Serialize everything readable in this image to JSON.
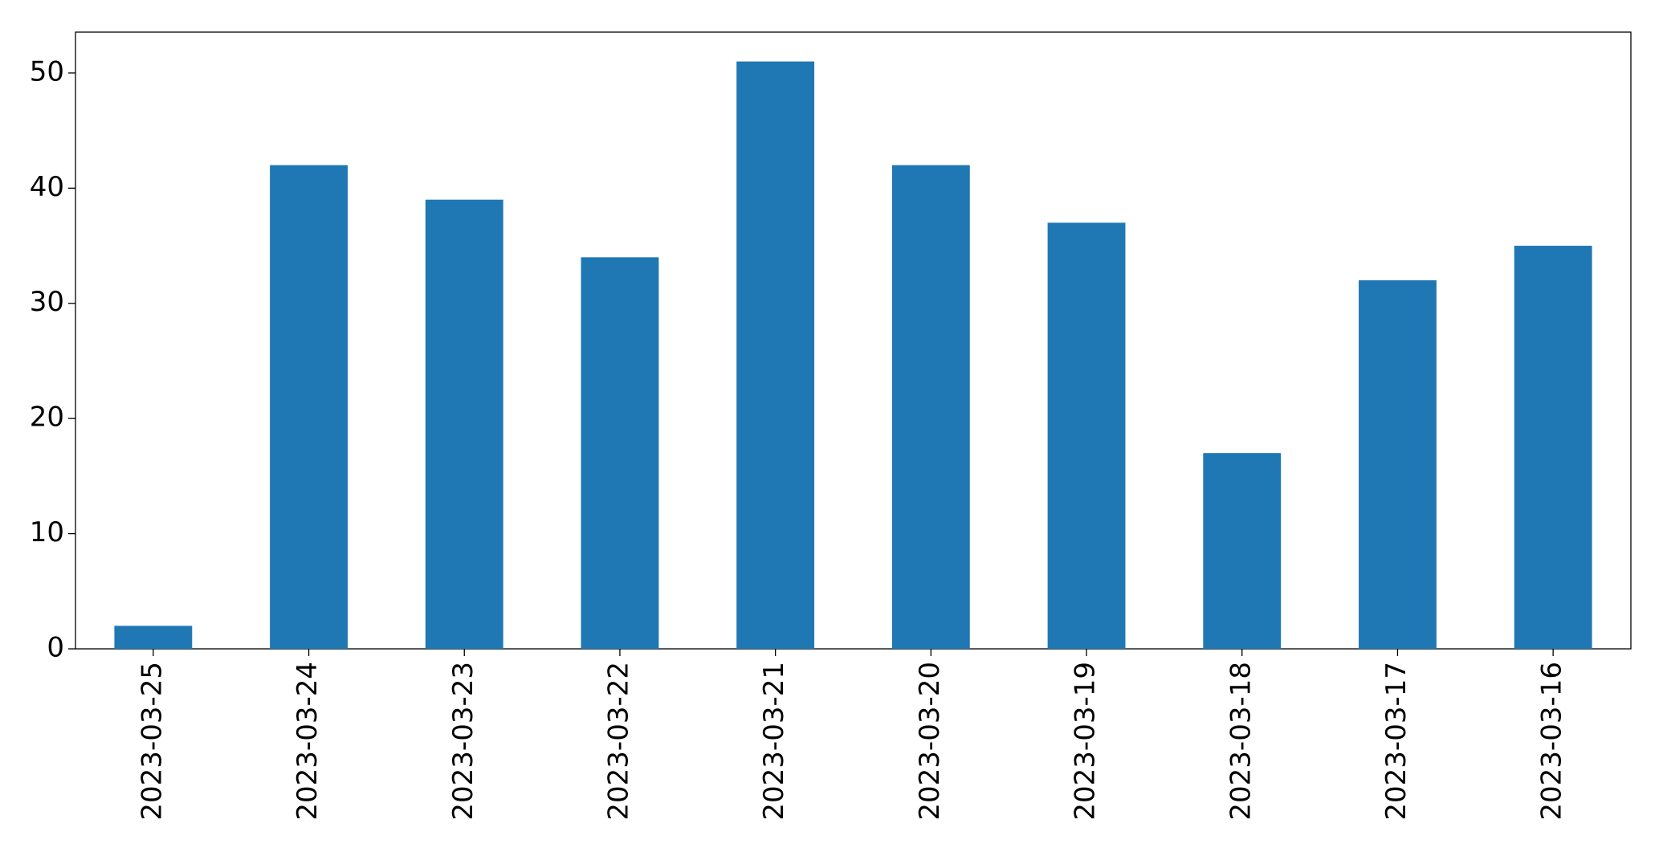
{
  "chart_data": {
    "type": "bar",
    "categories": [
      "2023-03-25",
      "2023-03-24",
      "2023-03-23",
      "2023-03-22",
      "2023-03-21",
      "2023-03-20",
      "2023-03-19",
      "2023-03-18",
      "2023-03-17",
      "2023-03-16"
    ],
    "values": [
      2,
      42,
      39,
      34,
      51,
      42,
      37,
      17,
      32,
      35
    ],
    "color": "#1f77b4",
    "ylim": [
      0,
      53.55
    ],
    "yticks": [
      0,
      10,
      20,
      30,
      40,
      50
    ],
    "grid": false
  }
}
